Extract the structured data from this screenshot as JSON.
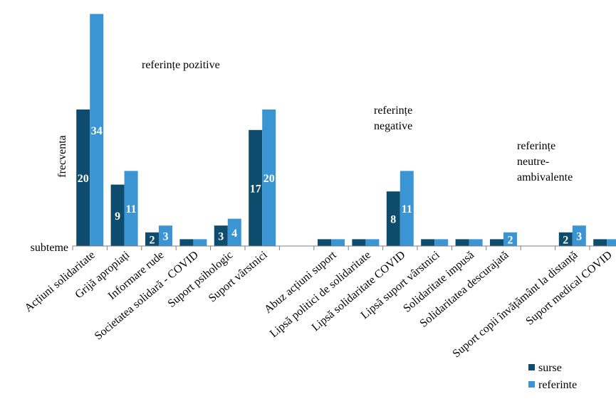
{
  "chart_data": {
    "type": "bar",
    "ylabel": "frecventa",
    "xlabel": "subteme",
    "ylim": [
      0,
      34
    ],
    "grid": false,
    "legend_position": "bottom-right",
    "categories": [
      "Acțiuni solidaritate",
      "Grijă apropiați",
      "Informare rude",
      "Societatea solidară - COVID",
      "Suport psihologic",
      "Suport vârstnici",
      "",
      "Abuz acțiuni suport",
      "Lipsă politici de solidaritate",
      "Lipsă solidaritate COVID",
      "Lipsă suport vârstnici",
      "Solidaritate impusă",
      "Solidaritatea descurajată",
      "",
      "Suport copii învățământ la distanță",
      "Suport medical COVID"
    ],
    "series": [
      {
        "name": "surse",
        "color": "#0e4c6e",
        "values": [
          20,
          9,
          2,
          1,
          3,
          17,
          null,
          1,
          1,
          8,
          1,
          1,
          1,
          null,
          2,
          1
        ],
        "labels": [
          "20",
          "9",
          "2",
          "",
          "3",
          "17",
          "",
          "",
          "",
          "8",
          "",
          "",
          "",
          "",
          "2",
          ""
        ]
      },
      {
        "name": "referinte",
        "color": "#3a95d2",
        "values": [
          34,
          11,
          3,
          1,
          4,
          20,
          null,
          1,
          1,
          11,
          1,
          1,
          2,
          null,
          3,
          1
        ],
        "labels": [
          "34",
          "11",
          "3",
          "",
          "4",
          "20",
          "",
          "",
          "",
          "11",
          "",
          "",
          "2",
          "",
          "3",
          ""
        ]
      }
    ],
    "annotations": [
      {
        "text": [
          "referințe pozitive"
        ]
      },
      {
        "text": [
          "referințe",
          "negative"
        ]
      },
      {
        "text": [
          "referințe",
          "neutre-",
          "ambivalente"
        ]
      }
    ]
  }
}
